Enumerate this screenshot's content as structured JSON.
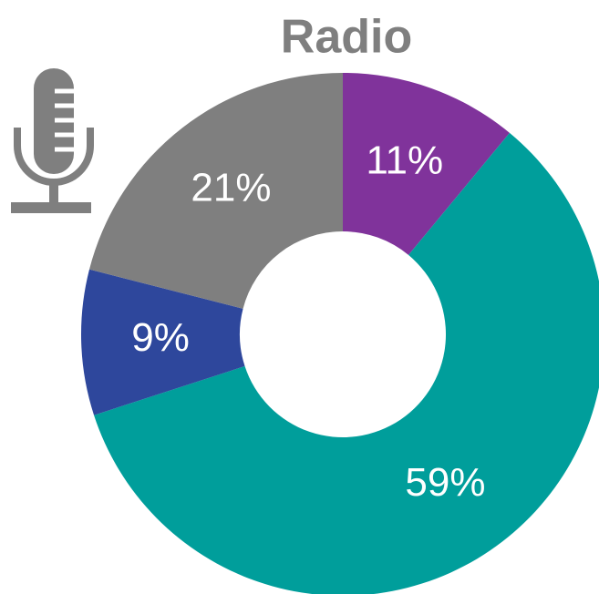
{
  "chart_data": {
    "type": "pie",
    "title": "Radio",
    "values": [
      11,
      59,
      9,
      21
    ],
    "value_labels": [
      "11%",
      "59%",
      "9%",
      "21%"
    ],
    "colors": [
      "#80339b",
      "#009e9b",
      "#2e479c",
      "#7f7f7f"
    ]
  }
}
